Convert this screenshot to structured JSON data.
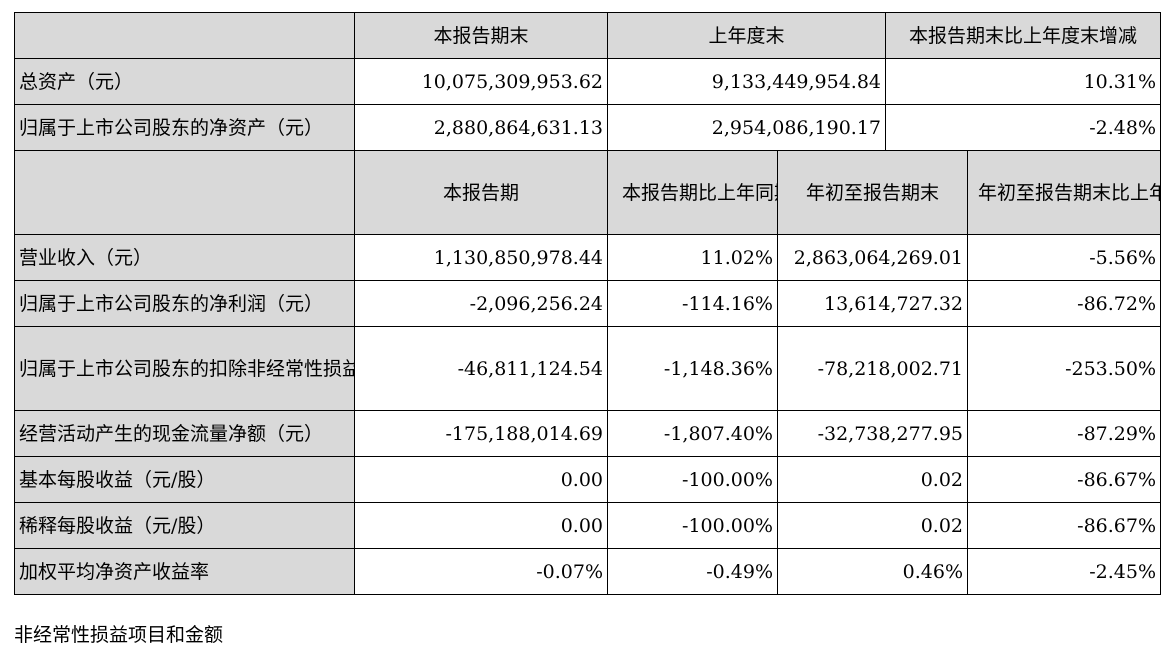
{
  "top_header": {
    "col1": "本报告期末",
    "col2": "上年度末",
    "col3": "本报告期末比上年度末增减"
  },
  "top_rows": [
    {
      "label": "总资产（元）",
      "v1": "10,075,309,953.62",
      "v2": "9,133,449,954.84",
      "v3": "10.31%"
    },
    {
      "label": "归属于上市公司股东的净资产（元）",
      "v1": "2,880,864,631.13",
      "v2": "2,954,086,190.17",
      "v3": "-2.48%"
    }
  ],
  "bottom_header": {
    "col1": "本报告期",
    "col2": "本报告期比上年同期增减",
    "col3": "年初至报告期末",
    "col4": "年初至报告期末比上年同期增减"
  },
  "bottom_rows": [
    {
      "label": "营业收入（元）",
      "v1": "1,130,850,978.44",
      "v2": "11.02%",
      "v3": "2,863,064,269.01",
      "v4": "-5.56%"
    },
    {
      "label": "归属于上市公司股东的净利润（元）",
      "v1": "-2,096,256.24",
      "v2": "-114.16%",
      "v3": "13,614,727.32",
      "v4": "-86.72%"
    },
    {
      "label": "归属于上市公司股东的扣除非经常性损益的净利润（元）",
      "v1": "-46,811,124.54",
      "v2": "-1,148.36%",
      "v3": "-78,218,002.71",
      "v4": "-253.50%"
    },
    {
      "label": "经营活动产生的现金流量净额（元）",
      "v1": "-175,188,014.69",
      "v2": "-1,807.40%",
      "v3": "-32,738,277.95",
      "v4": "-87.29%"
    },
    {
      "label": "基本每股收益（元/股）",
      "v1": "0.00",
      "v2": "-100.00%",
      "v3": "0.02",
      "v4": "-86.67%"
    },
    {
      "label": "稀释每股收益（元/股）",
      "v1": "0.00",
      "v2": "-100.00%",
      "v3": "0.02",
      "v4": "-86.67%"
    },
    {
      "label": "加权平均净资产收益率",
      "v1": "-0.07%",
      "v2": "-0.49%",
      "v3": "0.46%",
      "v4": "-2.45%"
    }
  ],
  "footer_text": "非经常性损益项目和金额"
}
